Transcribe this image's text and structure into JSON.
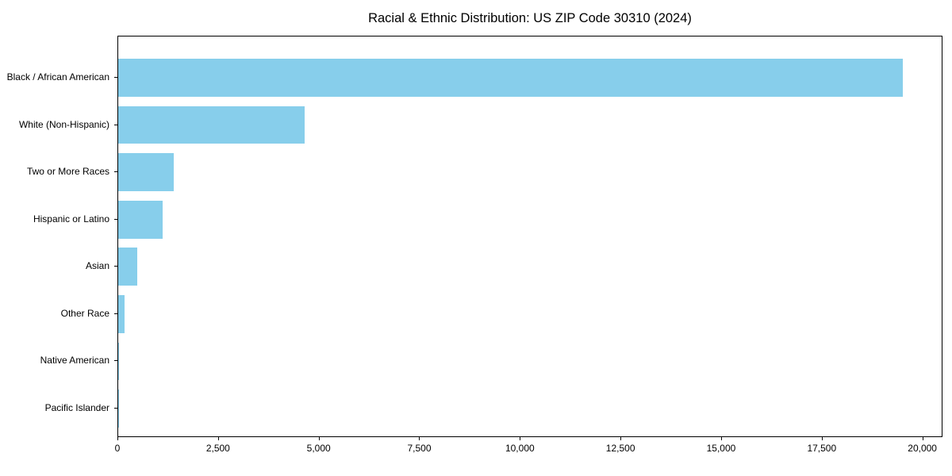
{
  "title": "Racial & Ethnic Distribution: US ZIP Code 30310 (2024)",
  "colors": {
    "bar": "#87CEEB",
    "axis": "#000000",
    "background": "#FFFFFF",
    "text": "#000000"
  },
  "chart_data": {
    "type": "bar",
    "orientation": "horizontal",
    "title": "Racial & Ethnic Distribution: US ZIP Code 30310 (2024)",
    "categories": [
      "Black / African American",
      "White (Non-Hispanic)",
      "Two or More Races",
      "Hispanic or Latino",
      "Asian",
      "Other Race",
      "Native American",
      "Pacific Islander"
    ],
    "values": [
      19500,
      4630,
      1380,
      1100,
      470,
      160,
      20,
      10
    ],
    "xlabel": "",
    "ylabel": "",
    "xlim": [
      0,
      20500
    ],
    "x_ticks": [
      0,
      2500,
      5000,
      7500,
      10000,
      12500,
      15000,
      17500,
      20000
    ],
    "x_tick_labels": [
      "0",
      "2,500",
      "5,000",
      "7,500",
      "10,000",
      "12,500",
      "15,000",
      "17,500",
      "20,000"
    ],
    "grid": false,
    "legend_position": "none",
    "bar_color": "#87CEEB",
    "sorted": "descending"
  }
}
